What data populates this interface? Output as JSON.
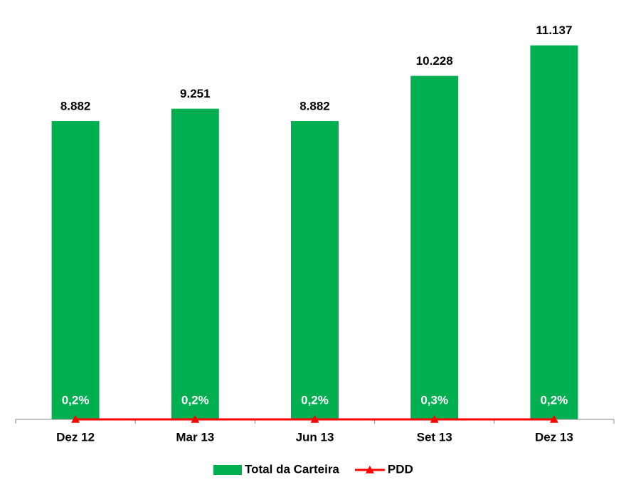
{
  "chart_data": {
    "type": "bar",
    "categories": [
      "Dez 12",
      "Mar 13",
      "Jun 13",
      "Set 13",
      "Dez 13"
    ],
    "ylim": [
      0,
      12000
    ],
    "series": [
      {
        "name": "Total da Carteira",
        "type": "bar",
        "color": "#00b050",
        "values": [
          8882,
          9251,
          8882,
          10228,
          11137
        ],
        "value_labels": [
          "8.882",
          "9.251",
          "8.882",
          "10.228",
          "11.137"
        ]
      },
      {
        "name": "PDD",
        "type": "line",
        "color": "#ff0000",
        "values": [
          0.2,
          0.2,
          0.2,
          0.3,
          0.2
        ],
        "value_labels": [
          "0,2%",
          "0,2%",
          "0,2%",
          "0,3%",
          "0,2%"
        ]
      }
    ],
    "legend": "bottom"
  }
}
